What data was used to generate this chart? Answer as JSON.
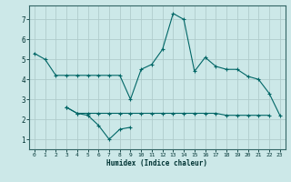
{
  "title": "",
  "xlabel": "Humidex (Indice chaleur)",
  "ylabel": "",
  "bg_color": "#cce8e8",
  "grid_color": "#b0cccc",
  "line_color": "#006666",
  "xlim": [
    -0.5,
    23.5
  ],
  "ylim": [
    0.5,
    7.7
  ],
  "xticks": [
    0,
    1,
    2,
    3,
    4,
    5,
    6,
    7,
    8,
    9,
    10,
    11,
    12,
    13,
    14,
    15,
    16,
    17,
    18,
    19,
    20,
    21,
    22,
    23
  ],
  "yticks": [
    1,
    2,
    3,
    4,
    5,
    6,
    7
  ],
  "lines": [
    {
      "x": [
        0,
        1,
        2,
        3,
        4,
        5,
        6,
        7,
        8,
        9,
        10,
        11,
        12,
        13,
        14,
        15,
        16,
        17,
        18,
        19,
        20,
        21,
        22,
        23
      ],
      "y": [
        5.3,
        5.0,
        4.2,
        4.2,
        4.2,
        4.2,
        4.2,
        4.2,
        4.2,
        3.0,
        4.5,
        4.75,
        5.5,
        7.3,
        7.0,
        4.4,
        5.1,
        4.65,
        4.5,
        4.5,
        4.15,
        4.0,
        3.3,
        2.2
      ]
    },
    {
      "x": [
        3,
        4,
        5,
        6,
        7,
        8,
        9
      ],
      "y": [
        2.6,
        2.3,
        2.2,
        1.7,
        1.0,
        1.5,
        1.6
      ]
    },
    {
      "x": [
        3,
        4,
        5,
        6,
        7,
        8,
        9,
        10,
        11,
        12,
        13,
        14,
        15,
        16,
        17,
        18,
        19,
        20,
        21,
        22
      ],
      "y": [
        2.6,
        2.3,
        2.3,
        2.3,
        2.3,
        2.3,
        2.3,
        2.3,
        2.3,
        2.3,
        2.3,
        2.3,
        2.3,
        2.3,
        2.3,
        2.2,
        2.2,
        2.2,
        2.2,
        2.2
      ]
    }
  ]
}
